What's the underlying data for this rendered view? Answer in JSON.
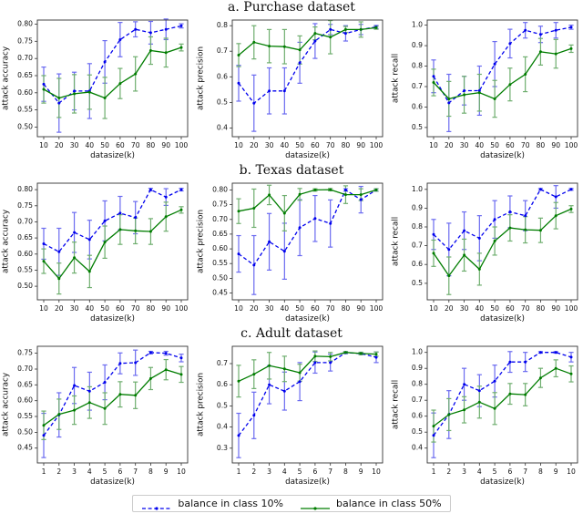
{
  "figure": {
    "background": "#ffffff",
    "legend": {
      "items": [
        {
          "label": "balance in class 10%",
          "color": "#0000ee",
          "ebar_color": "#6b6bf0",
          "style": "dashed"
        },
        {
          "label": "balance in class 50%",
          "color": "#007d00",
          "ebar_color": "#6fae6f",
          "style": "solid"
        }
      ]
    }
  },
  "sections": [
    {
      "title": "a. Purchase dataset"
    },
    {
      "title": "b. Texas dataset"
    },
    {
      "title": "c. Adult dataset"
    }
  ],
  "chart_data": [
    {
      "type": "line",
      "section": "a. Purchase dataset",
      "xlabel": "datasize(k)",
      "ylabel": "attack accuracy",
      "x": [
        10,
        20,
        30,
        40,
        50,
        60,
        70,
        80,
        90,
        100
      ],
      "yticks": [
        0.5,
        0.55,
        0.6,
        0.65,
        0.7,
        0.75,
        0.8
      ],
      "ytick_decimals": 2,
      "ylim": [
        0.472,
        0.812
      ],
      "grid": false,
      "series": [
        {
          "name": "balance in class 10%",
          "style": "dashed",
          "color": "#0000ee",
          "ebar_color": "#6b6bf0",
          "values": [
            0.625,
            0.57,
            0.605,
            0.605,
            0.69,
            0.755,
            0.785,
            0.775,
            0.785,
            0.795
          ],
          "errors": [
            0.05,
            0.085,
            0.055,
            0.08,
            0.062,
            0.05,
            0.022,
            0.033,
            0.03,
            0.006
          ]
        },
        {
          "name": "balance in class 50%",
          "style": "solid",
          "color": "#007d00",
          "ebar_color": "#6fae6f",
          "values": [
            0.61,
            0.585,
            0.597,
            0.602,
            0.585,
            0.627,
            0.655,
            0.723,
            0.717,
            0.732
          ],
          "errors": [
            0.04,
            0.057,
            0.056,
            0.05,
            0.06,
            0.044,
            0.05,
            0.04,
            0.042,
            0.01
          ]
        }
      ]
    },
    {
      "type": "line",
      "section": "a. Purchase dataset",
      "xlabel": "datasize(k)",
      "ylabel": "attack precision",
      "x": [
        10,
        20,
        30,
        40,
        50,
        60,
        70,
        80,
        90,
        100
      ],
      "yticks": [
        0.4,
        0.5,
        0.6,
        0.7,
        0.8
      ],
      "ytick_decimals": 1,
      "ylim": [
        0.366,
        0.822
      ],
      "grid": false,
      "series": [
        {
          "name": "balance in class 10%",
          "style": "dashed",
          "color": "#0000ee",
          "ebar_color": "#6b6bf0",
          "values": [
            0.575,
            0.497,
            0.545,
            0.545,
            0.655,
            0.74,
            0.785,
            0.77,
            0.785,
            0.795
          ],
          "errors": [
            0.07,
            0.11,
            0.09,
            0.09,
            0.08,
            0.068,
            0.02,
            0.03,
            0.02,
            0.006
          ]
        },
        {
          "name": "balance in class 50%",
          "style": "solid",
          "color": "#007d00",
          "ebar_color": "#6fae6f",
          "values": [
            0.685,
            0.735,
            0.72,
            0.718,
            0.705,
            0.77,
            0.755,
            0.785,
            0.785,
            0.792
          ],
          "errors": [
            0.045,
            0.065,
            0.065,
            0.067,
            0.055,
            0.025,
            0.065,
            0.012,
            0.03,
            0.006
          ]
        }
      ]
    },
    {
      "type": "line",
      "section": "a. Purchase dataset",
      "xlabel": "datasize(k)",
      "ylabel": "attack recall",
      "x": [
        10,
        20,
        30,
        40,
        50,
        60,
        70,
        80,
        90,
        100
      ],
      "yticks": [
        0.5,
        0.6,
        0.7,
        0.8,
        0.9,
        1.0
      ],
      "ytick_decimals": 1,
      "ylim": [
        0.455,
        1.025
      ],
      "grid": false,
      "series": [
        {
          "name": "balance in class 10%",
          "style": "dashed",
          "color": "#0000ee",
          "ebar_color": "#6b6bf0",
          "values": [
            0.75,
            0.62,
            0.68,
            0.68,
            0.81,
            0.91,
            0.975,
            0.955,
            0.975,
            0.99
          ],
          "errors": [
            0.08,
            0.14,
            0.07,
            0.12,
            0.11,
            0.07,
            0.038,
            0.04,
            0.038,
            0.01
          ]
        },
        {
          "name": "balance in class 50%",
          "style": "solid",
          "color": "#007d00",
          "ebar_color": "#6fae6f",
          "values": [
            0.72,
            0.64,
            0.66,
            0.67,
            0.64,
            0.71,
            0.76,
            0.87,
            0.86,
            0.885
          ],
          "errors": [
            0.065,
            0.085,
            0.09,
            0.09,
            0.09,
            0.08,
            0.085,
            0.065,
            0.07,
            0.018
          ]
        }
      ]
    },
    {
      "type": "line",
      "section": "b. Texas dataset",
      "xlabel": "datasize(k)",
      "ylabel": "attack accuracy",
      "x": [
        10,
        20,
        30,
        40,
        50,
        60,
        70,
        80,
        90,
        100
      ],
      "yticks": [
        0.5,
        0.55,
        0.6,
        0.65,
        0.7,
        0.75,
        0.8
      ],
      "ytick_decimals": 2,
      "ylim": [
        0.458,
        0.82
      ],
      "grid": false,
      "series": [
        {
          "name": "balance in class 10%",
          "style": "dashed",
          "color": "#0000ee",
          "ebar_color": "#6b6bf0",
          "values": [
            0.632,
            0.607,
            0.667,
            0.645,
            0.703,
            0.727,
            0.713,
            0.8,
            0.777,
            0.8
          ],
          "errors": [
            0.048,
            0.073,
            0.062,
            0.06,
            0.062,
            0.052,
            0.05,
            0.004,
            0.026,
            0.004
          ]
        },
        {
          "name": "balance in class 50%",
          "style": "solid",
          "color": "#007d00",
          "ebar_color": "#6fae6f",
          "values": [
            0.578,
            0.524,
            0.589,
            0.546,
            0.637,
            0.676,
            0.672,
            0.67,
            0.716,
            0.737
          ],
          "errors": [
            0.038,
            0.048,
            0.048,
            0.05,
            0.05,
            0.046,
            0.04,
            0.04,
            0.045,
            0.01
          ]
        }
      ]
    },
    {
      "type": "line",
      "section": "b. Texas dataset",
      "xlabel": "datasize(k)",
      "ylabel": "attack precision",
      "x": [
        10,
        20,
        30,
        40,
        50,
        60,
        70,
        80,
        90,
        100
      ],
      "yticks": [
        0.45,
        0.5,
        0.55,
        0.6,
        0.65,
        0.7,
        0.75,
        0.8
      ],
      "ytick_decimals": 2,
      "ylim": [
        0.427,
        0.823
      ],
      "grid": false,
      "series": [
        {
          "name": "balance in class 10%",
          "style": "dashed",
          "color": "#0000ee",
          "ebar_color": "#6b6bf0",
          "values": [
            0.583,
            0.545,
            0.624,
            0.592,
            0.672,
            0.703,
            0.686,
            0.8,
            0.767,
            0.8
          ],
          "errors": [
            0.062,
            0.1,
            0.096,
            0.095,
            0.095,
            0.078,
            0.08,
            0.004,
            0.045,
            0.004
          ]
        },
        {
          "name": "balance in class 50%",
          "style": "solid",
          "color": "#007d00",
          "ebar_color": "#6fae6f",
          "values": [
            0.728,
            0.738,
            0.783,
            0.721,
            0.785,
            0.8,
            0.801,
            0.784,
            0.784,
            0.8
          ],
          "errors": [
            0.042,
            0.065,
            0.033,
            0.06,
            0.02,
            0.004,
            0.004,
            0.03,
            0.02,
            0.004
          ]
        }
      ]
    },
    {
      "type": "line",
      "section": "b. Texas dataset",
      "xlabel": "datasize(k)",
      "ylabel": "attack recall",
      "x": [
        10,
        20,
        30,
        40,
        50,
        60,
        70,
        80,
        90,
        100
      ],
      "yticks": [
        0.5,
        0.6,
        0.7,
        0.8,
        0.9,
        1.0
      ],
      "ytick_decimals": 1,
      "ylim": [
        0.412,
        1.033
      ],
      "grid": false,
      "series": [
        {
          "name": "balance in class 10%",
          "style": "dashed",
          "color": "#0000ee",
          "ebar_color": "#6b6bf0",
          "values": [
            0.76,
            0.68,
            0.78,
            0.74,
            0.84,
            0.88,
            0.86,
            1.0,
            0.96,
            1.0
          ],
          "errors": [
            0.08,
            0.14,
            0.1,
            0.12,
            0.1,
            0.085,
            0.08,
            0.005,
            0.06,
            0.005
          ]
        },
        {
          "name": "balance in class 50%",
          "style": "solid",
          "color": "#007d00",
          "ebar_color": "#6fae6f",
          "values": [
            0.66,
            0.54,
            0.65,
            0.575,
            0.725,
            0.795,
            0.785,
            0.782,
            0.86,
            0.895
          ],
          "errors": [
            0.07,
            0.1,
            0.085,
            0.085,
            0.075,
            0.07,
            0.07,
            0.065,
            0.07,
            0.018
          ]
        }
      ]
    },
    {
      "type": "line",
      "section": "c. Adult dataset",
      "xlabel": "datasize(k)",
      "ylabel": "attack accuracy",
      "x": [
        1,
        2,
        3,
        4,
        5,
        6,
        7,
        8,
        9,
        10
      ],
      "yticks": [
        0.45,
        0.5,
        0.55,
        0.6,
        0.65,
        0.7,
        0.75
      ],
      "ytick_decimals": 2,
      "ylim": [
        0.403,
        0.772
      ],
      "grid": false,
      "series": [
        {
          "name": "balance in class 10%",
          "style": "dashed",
          "color": "#0000ee",
          "ebar_color": "#6b6bf0",
          "values": [
            0.49,
            0.555,
            0.648,
            0.63,
            0.658,
            0.718,
            0.72,
            0.752,
            0.75,
            0.735
          ],
          "errors": [
            0.07,
            0.07,
            0.057,
            0.06,
            0.055,
            0.033,
            0.04,
            0.004,
            0.006,
            0.012
          ]
        },
        {
          "name": "balance in class 50%",
          "style": "solid",
          "color": "#007d00",
          "ebar_color": "#6fae6f",
          "values": [
            0.522,
            0.557,
            0.57,
            0.594,
            0.575,
            0.62,
            0.617,
            0.67,
            0.698,
            0.683
          ],
          "errors": [
            0.045,
            0.048,
            0.045,
            0.05,
            0.05,
            0.04,
            0.042,
            0.035,
            0.032,
            0.025
          ]
        }
      ]
    },
    {
      "type": "line",
      "section": "c. Adult dataset",
      "xlabel": "datasize(k)",
      "ylabel": "attack precision",
      "x": [
        1,
        2,
        3,
        4,
        5,
        6,
        7,
        8,
        9,
        10
      ],
      "yticks": [
        0.3,
        0.4,
        0.5,
        0.6,
        0.7
      ],
      "ytick_decimals": 1,
      "ylim": [
        0.23,
        0.782
      ],
      "grid": false,
      "series": [
        {
          "name": "balance in class 10%",
          "style": "dashed",
          "color": "#0000ee",
          "ebar_color": "#6b6bf0",
          "values": [
            0.36,
            0.455,
            0.6,
            0.57,
            0.615,
            0.705,
            0.705,
            0.752,
            0.748,
            0.73
          ],
          "errors": [
            0.105,
            0.11,
            0.09,
            0.09,
            0.09,
            0.05,
            0.04,
            0.005,
            0.005,
            0.025
          ]
        },
        {
          "name": "balance in class 50%",
          "style": "solid",
          "color": "#007d00",
          "ebar_color": "#6fae6f",
          "values": [
            0.617,
            0.65,
            0.69,
            0.675,
            0.657,
            0.735,
            0.733,
            0.753,
            0.748,
            0.745
          ],
          "errors": [
            0.075,
            0.068,
            0.063,
            0.06,
            0.04,
            0.025,
            0.02,
            0.004,
            0.006,
            0.01
          ]
        }
      ]
    },
    {
      "type": "line",
      "section": "c. Adult dataset",
      "xlabel": "datasize(k)",
      "ylabel": "attack recall",
      "x": [
        1,
        2,
        3,
        4,
        5,
        6,
        7,
        8,
        9,
        10
      ],
      "yticks": [
        0.4,
        0.5,
        0.6,
        0.7,
        0.8,
        0.9,
        1.0
      ],
      "ytick_decimals": 1,
      "ylim": [
        0.307,
        1.038
      ],
      "grid": false,
      "series": [
        {
          "name": "balance in class 10%",
          "style": "dashed",
          "color": "#0000ee",
          "ebar_color": "#6b6bf0",
          "values": [
            0.48,
            0.61,
            0.8,
            0.76,
            0.82,
            0.94,
            0.94,
            1.0,
            1.0,
            0.97
          ],
          "errors": [
            0.14,
            0.15,
            0.1,
            0.1,
            0.1,
            0.065,
            0.06,
            0.005,
            0.005,
            0.03
          ]
        },
        {
          "name": "balance in class 50%",
          "style": "solid",
          "color": "#007d00",
          "ebar_color": "#6fae6f",
          "values": [
            0.538,
            0.61,
            0.64,
            0.688,
            0.648,
            0.74,
            0.735,
            0.84,
            0.9,
            0.865
          ],
          "errors": [
            0.1,
            0.1,
            0.082,
            0.1,
            0.1,
            0.065,
            0.07,
            0.06,
            0.053,
            0.05
          ]
        }
      ]
    }
  ]
}
